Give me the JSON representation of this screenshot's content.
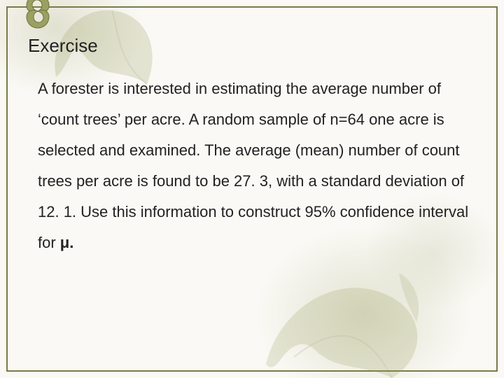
{
  "slide": {
    "title": "Exercise",
    "body_html": "A forester is interested in estimating the average number of ‘count trees’ per acre. A random sample of n=64 one acre is selected and examined. The average (mean) number of count trees per acre is found to be 27. 3, with a standard deviation of 12. 1. Use this information to construct  95% confidence interval for <span class=\"bold-mu\">μ.</span>"
  },
  "style": {
    "background_color": "#faf9f5",
    "border_color": "#7a7b48",
    "title_fontsize": 26,
    "body_fontsize": 22,
    "body_line_height": 2.0,
    "text_color": "#222222",
    "leaf_tint": "#8f935f",
    "knot_fill": "#9aa060"
  }
}
